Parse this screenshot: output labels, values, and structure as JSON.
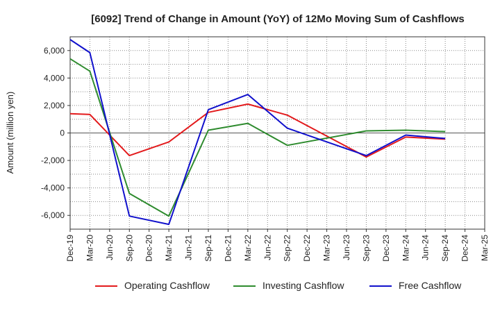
{
  "chart_data": {
    "type": "line",
    "title": "[6092]  Trend of Change in Amount (YoY) of 12Mo Moving Sum of Cashflows",
    "ylabel": "Amount (million yen)",
    "xlabel": "",
    "ylim": [
      -7000,
      7000
    ],
    "yticks": [
      -6000,
      -4000,
      -2000,
      0,
      2000,
      4000,
      6000
    ],
    "ytick_labels": [
      "-6,000",
      "-4,000",
      "-2,000",
      "0",
      "2,000",
      "4,000",
      "6,000"
    ],
    "categories": [
      "Dec-19",
      "Mar-20",
      "Jun-20",
      "Sep-20",
      "Dec-20",
      "Mar-21",
      "Jun-21",
      "Sep-21",
      "Dec-21",
      "Mar-22",
      "Jun-22",
      "Sep-22",
      "Dec-22",
      "Mar-23",
      "Jun-23",
      "Sep-23",
      "Dec-23",
      "Mar-24",
      "Jun-24",
      "Sep-24",
      "Dec-24",
      "Mar-25"
    ],
    "grid": true,
    "legend_position": "bottom",
    "series": [
      {
        "name": "Operating Cashflow",
        "color": "#e31a1c",
        "values": [
          1400,
          1350,
          null,
          -1650,
          null,
          -650,
          null,
          1500,
          null,
          2100,
          null,
          1300,
          null,
          null,
          null,
          -1750,
          null,
          -300,
          null,
          -450,
          null,
          null
        ],
        "connect_gaps": true
      },
      {
        "name": "Investing Cashflow",
        "color": "#2e8b2e",
        "values": [
          5400,
          4500,
          null,
          -4400,
          null,
          -6050,
          null,
          200,
          null,
          700,
          null,
          -900,
          null,
          null,
          null,
          150,
          null,
          200,
          null,
          100,
          null,
          null
        ],
        "connect_gaps": true
      },
      {
        "name": "Free Cashflow",
        "color": "#1010cc",
        "values": [
          6800,
          5850,
          null,
          -6050,
          null,
          -6650,
          null,
          1700,
          null,
          2800,
          null,
          350,
          null,
          null,
          null,
          -1650,
          null,
          -150,
          null,
          -400,
          null,
          null
        ],
        "connect_gaps": true
      }
    ]
  }
}
